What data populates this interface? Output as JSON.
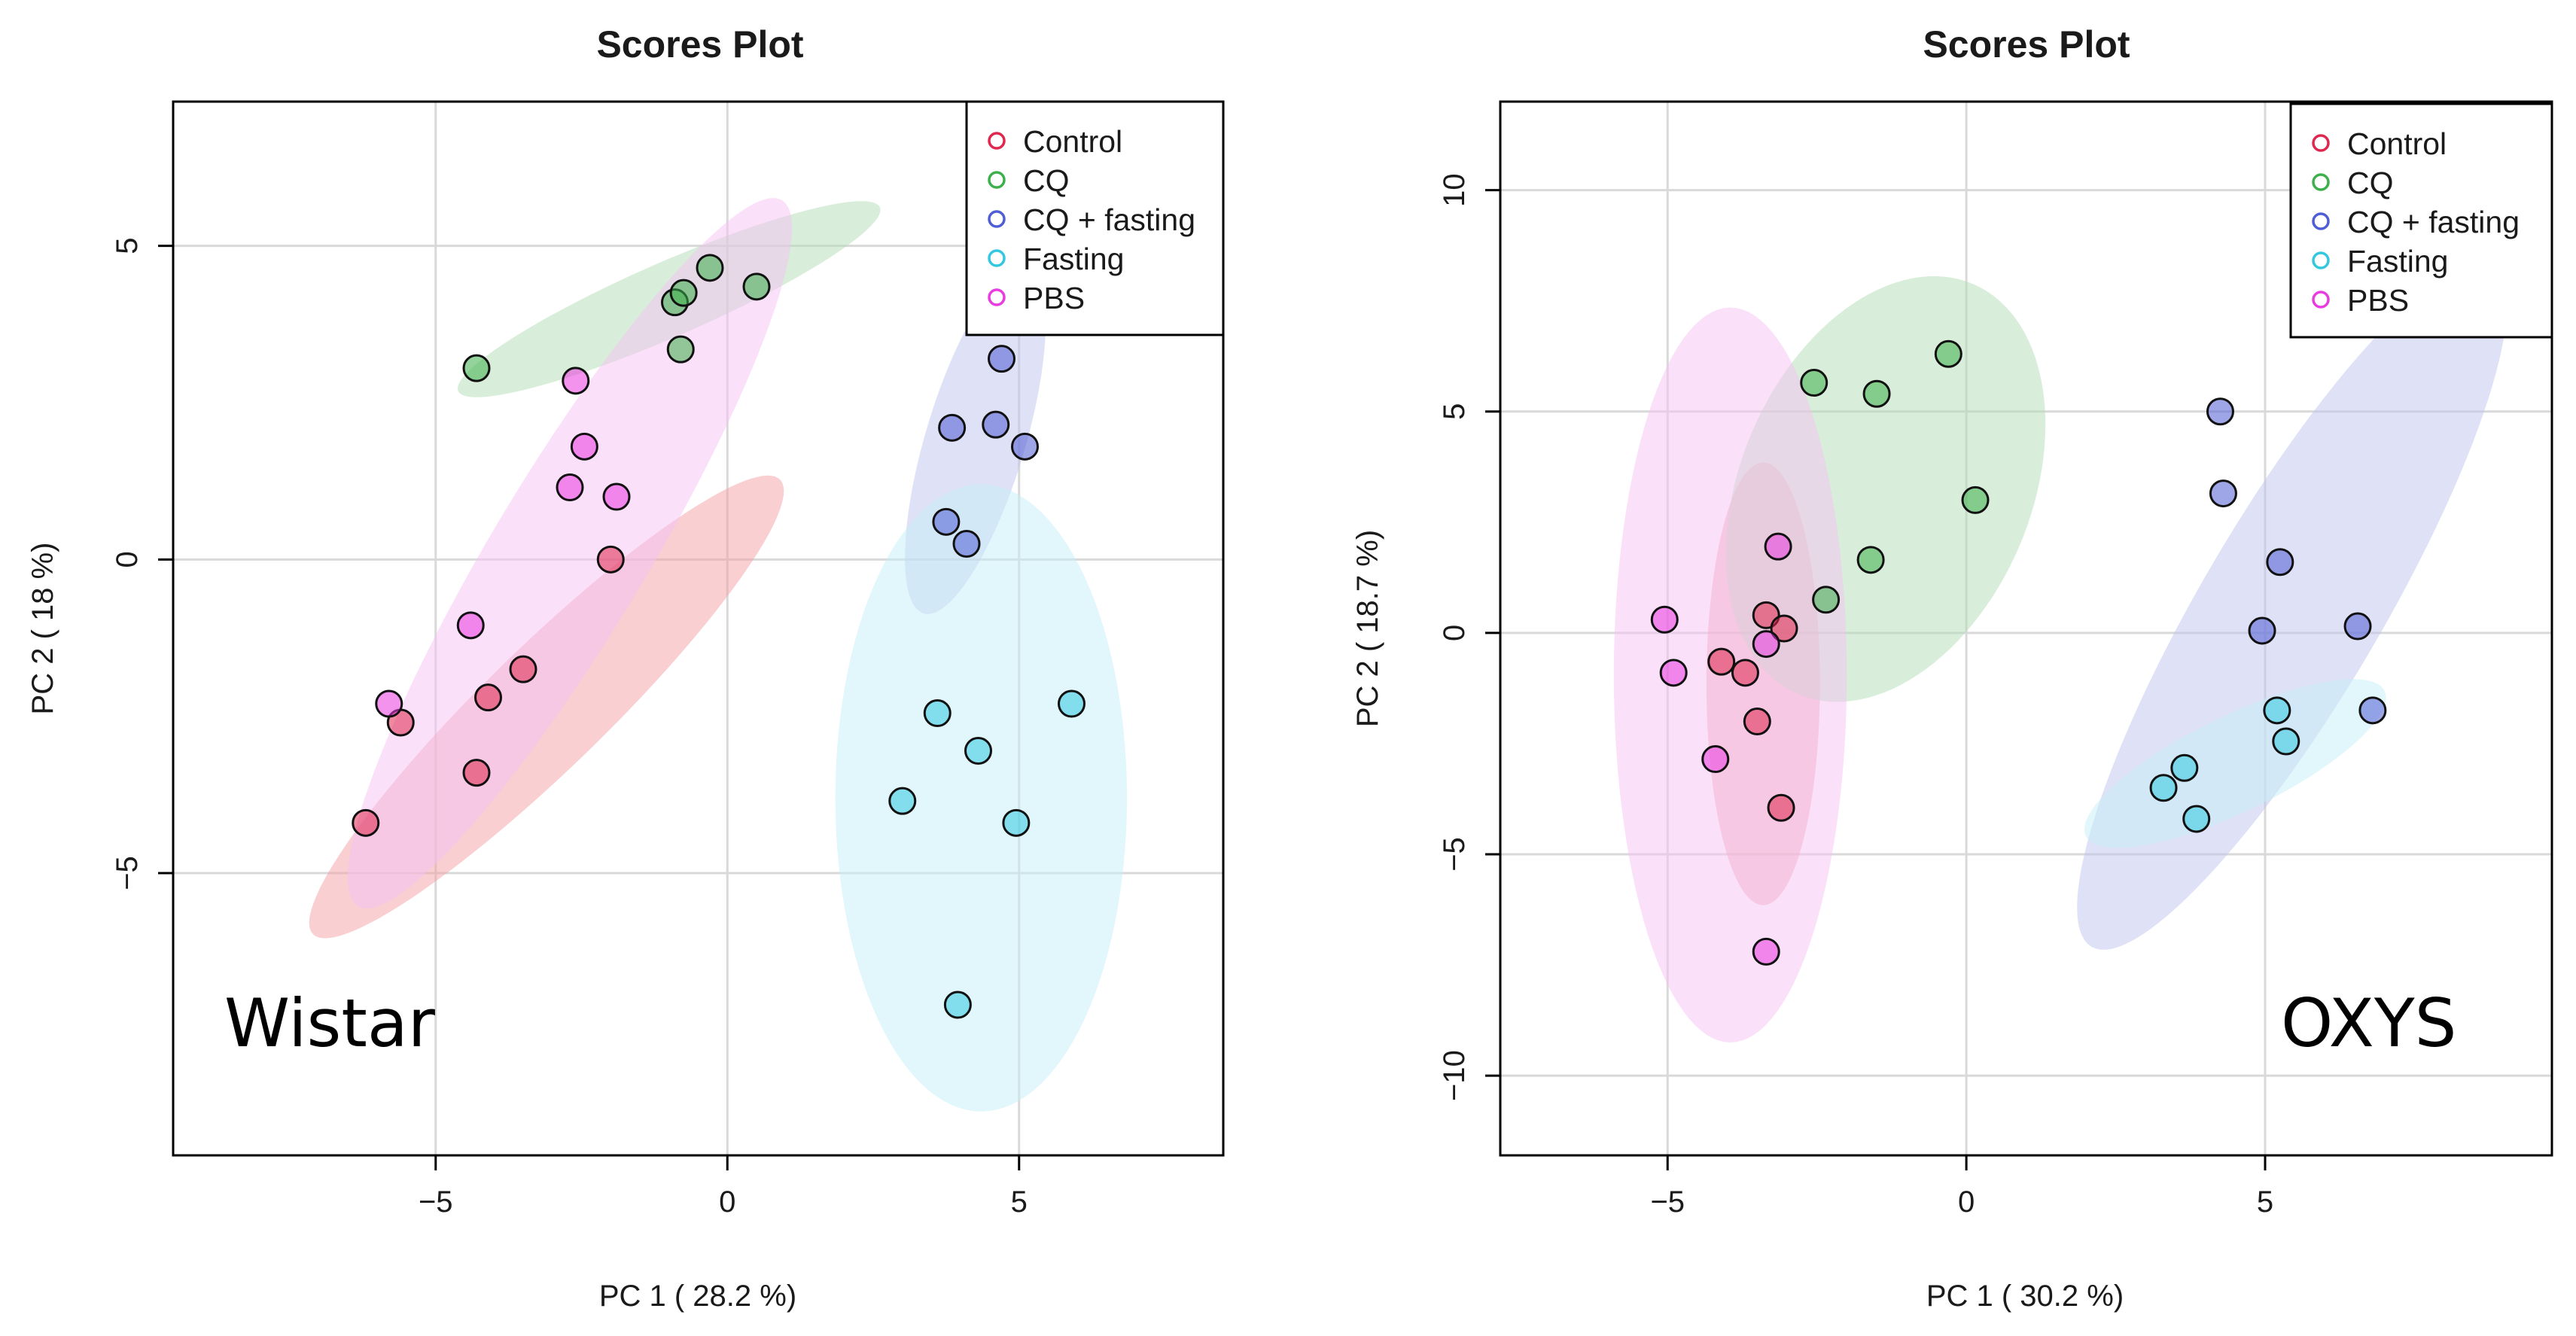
{
  "chart_data": [
    {
      "type": "scatter",
      "title": "Scores Plot",
      "xlabel": "PC 1 ( 28.2 %)",
      "ylabel": "PC 2 ( 18 %)",
      "xlim": [
        -9.5,
        8.5
      ],
      "ylim": [
        -9.5,
        7.3
      ],
      "xticks": [
        -5,
        0,
        5
      ],
      "yticks": [
        -5,
        0,
        5
      ],
      "xtick_labels": [
        "−5",
        "0",
        "5"
      ],
      "ytick_labels": [
        "−5",
        "0",
        "5"
      ],
      "annotation": "Wistar",
      "legend": {
        "position": "top-right",
        "entries": [
          "Control",
          "CQ",
          "CQ + fasting",
          "Fasting",
          "PBS"
        ]
      },
      "series": [
        {
          "name": "Control",
          "color": "#e0284f",
          "ellipse_color": "#f4a0a6",
          "ellipse": {
            "cx": -3.1,
            "cy": -2.35,
            "rx": 5.4,
            "ry": 1.0,
            "angle_deg": 42
          },
          "points": [
            [
              -6.2,
              -4.2
            ],
            [
              -5.6,
              -2.6
            ],
            [
              -4.3,
              -3.4
            ],
            [
              -4.1,
              -2.2
            ],
            [
              -3.5,
              -1.75
            ],
            [
              -2.0,
              0.0
            ]
          ]
        },
        {
          "name": "CQ",
          "color": "#3db04b",
          "ellipse_color": "#b3deb5",
          "ellipse": {
            "cx": -1.0,
            "cy": 4.15,
            "rx": 3.9,
            "ry": 0.6,
            "angle_deg": 22
          },
          "points": [
            [
              -4.3,
              3.05
            ],
            [
              -0.9,
              4.1
            ],
            [
              -0.75,
              4.25
            ],
            [
              -0.8,
              3.35
            ],
            [
              -0.3,
              4.65
            ],
            [
              0.5,
              4.35
            ]
          ]
        },
        {
          "name": "CQ + fasting",
          "color": "#4f5dd6",
          "ellipse_color": "#bfc4ee",
          "ellipse": {
            "cx": 4.25,
            "cy": 1.9,
            "rx": 2.9,
            "ry": 0.85,
            "angle_deg": 72
          },
          "points": [
            [
              4.7,
              3.2
            ],
            [
              3.85,
              2.1
            ],
            [
              4.6,
              2.15
            ],
            [
              5.1,
              1.8
            ],
            [
              3.75,
              0.6
            ],
            [
              4.1,
              0.25
            ]
          ]
        },
        {
          "name": "Fasting",
          "color": "#33c8e0",
          "ellipse_color": "#c6eff7",
          "ellipse": {
            "cx": 4.35,
            "cy": -3.8,
            "rx": 2.5,
            "ry": 5.0,
            "angle_deg": 0
          },
          "points": [
            [
              3.6,
              -2.45
            ],
            [
              4.3,
              -3.05
            ],
            [
              5.9,
              -2.3
            ],
            [
              3.0,
              -3.85
            ],
            [
              4.95,
              -4.2
            ],
            [
              3.95,
              -7.1
            ]
          ]
        },
        {
          "name": "PBS",
          "color": "#e93be0",
          "ellipse_color": "#f6c2f3",
          "ellipse": {
            "cx": -2.7,
            "cy": 0.1,
            "rx": 6.7,
            "ry": 1.3,
            "angle_deg": 57
          },
          "points": [
            [
              -2.6,
              2.85
            ],
            [
              -2.45,
              1.8
            ],
            [
              -2.7,
              1.15
            ],
            [
              -1.9,
              1.0
            ],
            [
              -4.4,
              -1.05
            ],
            [
              -5.8,
              -2.3
            ]
          ]
        }
      ]
    },
    {
      "type": "scatter",
      "title": "Scores Plot",
      "xlabel": "PC 1 ( 30.2 %)",
      "ylabel": "PC 2 ( 18.7 %)",
      "xlim": [
        -7.8,
        9.8
      ],
      "ylim": [
        -11.8,
        12.0
      ],
      "xticks": [
        -5,
        0,
        5
      ],
      "yticks": [
        -10,
        -5,
        0,
        5,
        10
      ],
      "xtick_labels": [
        "−5",
        "0",
        "5"
      ],
      "ytick_labels": [
        "−10",
        "−5",
        "0",
        "5",
        "10"
      ],
      "annotation": "OXYS",
      "legend": {
        "position": "top-right",
        "entries": [
          "Control",
          "CQ",
          "CQ + fasting",
          "Fasting",
          "PBS"
        ]
      },
      "series": [
        {
          "name": "Control",
          "color": "#e0284f",
          "ellipse_color": "#f4a0a6",
          "ellipse": {
            "cx": -3.4,
            "cy": -1.15,
            "rx": 0.95,
            "ry": 5.0,
            "angle_deg": 0
          },
          "points": [
            [
              -3.35,
              0.4
            ],
            [
              -3.05,
              0.1
            ],
            [
              -4.1,
              -0.65
            ],
            [
              -3.7,
              -0.9
            ],
            [
              -3.5,
              -2.0
            ],
            [
              -3.1,
              -3.95
            ]
          ]
        },
        {
          "name": "CQ",
          "color": "#3db04b",
          "ellipse_color": "#b3deb5",
          "ellipse": {
            "cx": -1.35,
            "cy": 3.25,
            "rx": 4.9,
            "ry": 2.5,
            "angle_deg": 77
          },
          "points": [
            [
              -2.55,
              5.65
            ],
            [
              -1.5,
              5.4
            ],
            [
              -0.3,
              6.3
            ],
            [
              0.15,
              3.0
            ],
            [
              -1.6,
              1.65
            ],
            [
              -2.35,
              0.75
            ]
          ]
        },
        {
          "name": "CQ + fasting",
          "color": "#4f5dd6",
          "ellipse_color": "#bfc4ee",
          "ellipse": {
            "cx": 5.45,
            "cy": 0.6,
            "rx": 8.4,
            "ry": 1.6,
            "angle_deg": 67
          },
          "points": [
            [
              4.25,
              5.0
            ],
            [
              4.3,
              3.15
            ],
            [
              5.25,
              1.6
            ],
            [
              4.95,
              0.05
            ],
            [
              6.55,
              0.15
            ],
            [
              6.8,
              -1.75
            ]
          ]
        },
        {
          "name": "Fasting",
          "color": "#33c8e0",
          "ellipse_color": "#c6eff7",
          "ellipse": {
            "cx": 4.5,
            "cy": -2.95,
            "rx": 3.0,
            "ry": 1.0,
            "angle_deg": 35
          },
          "points": [
            [
              5.2,
              -1.75
            ],
            [
              5.35,
              -2.45
            ],
            [
              3.65,
              -3.05
            ],
            [
              3.3,
              -3.5
            ],
            [
              3.85,
              -4.2
            ]
          ]
        },
        {
          "name": "PBS",
          "color": "#e93be0",
          "ellipse_color": "#f6c2f3",
          "ellipse": {
            "cx": -3.95,
            "cy": -0.95,
            "rx": 1.95,
            "ry": 8.3,
            "angle_deg": 0
          },
          "points": [
            [
              -3.15,
              1.95
            ],
            [
              -5.05,
              0.3
            ],
            [
              -4.9,
              -0.9
            ],
            [
              -3.35,
              -0.25
            ],
            [
              -4.2,
              -2.85
            ],
            [
              -3.35,
              -7.2
            ]
          ]
        }
      ]
    }
  ]
}
